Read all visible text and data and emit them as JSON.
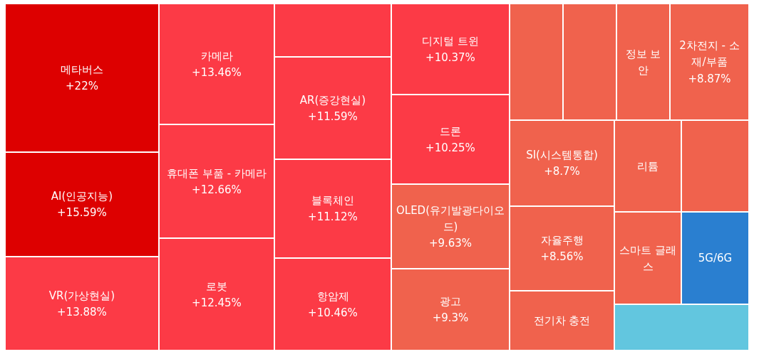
{
  "chart_data": {
    "type": "other",
    "categories": [
      "메타버스",
      "AI(인공지능)",
      "VR(가상현실)",
      "카메라",
      "휴대폰 부품 - 카메라",
      "로봇",
      null,
      "AR(증강현실)",
      "블록체인",
      "항암제",
      "디지털 트윈",
      "드론",
      "OLED(유기발광다이오드)",
      "광고",
      null,
      null,
      "정보 보안",
      "2차전지 - 소재/부품",
      "SI(시스템통합)",
      "자율주행",
      "전기차 충전",
      "리튬",
      null,
      "스마트 글래스",
      "5G/6G",
      null
    ],
    "values": [
      22,
      15.59,
      13.88,
      13.46,
      12.66,
      12.45,
      null,
      11.59,
      11.12,
      10.46,
      10.37,
      10.25,
      9.63,
      9.3,
      null,
      null,
      null,
      8.87,
      8.7,
      8.56,
      null,
      null,
      null,
      null,
      null,
      null
    ],
    "value_labels": [
      "+22%",
      "+15.59%",
      "+13.88%",
      "+13.46%",
      "+12.66%",
      "+12.45%",
      null,
      "+11.59%",
      "+11.12%",
      "+10.46%",
      "+10.37%",
      "+10.25%",
      "+9.63%",
      "+9.3%",
      null,
      null,
      null,
      "+8.87%",
      "+8.7%",
      "+8.56%",
      null,
      null,
      null,
      null,
      null,
      null
    ],
    "colors": [
      "#dd0000",
      "#dd0000",
      "#fc3a46",
      "#fc3a46",
      "#fc3a46",
      "#fc3a46",
      "#fc3a46",
      "#fc3a46",
      "#fc3a46",
      "#fc3a46",
      "#fc3a46",
      "#fc3a46",
      "#f0624d",
      "#f0624d",
      "#f0624d",
      "#f0624d",
      "#f0624d",
      "#f0624d",
      "#f0624d",
      "#f0624d",
      "#f0624d",
      "#f0624d",
      "#f0624d",
      "#f0624d",
      "#2a7fd0",
      "#62c6df"
    ]
  }
}
